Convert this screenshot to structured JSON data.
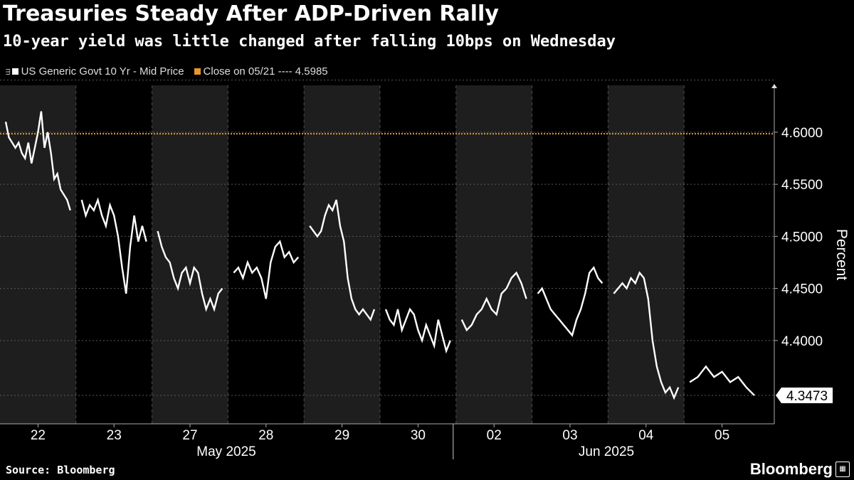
{
  "header": {
    "title": "Treasuries Steady After ADP-Driven Rally",
    "subtitle": "10-year yield was little changed after falling 10bps on Wednesday"
  },
  "legend": {
    "series_label": "US Generic Govt 10 Yr - Mid Price",
    "reference_label": "Close on 05/21 ---- 4.5985"
  },
  "footer": {
    "source": "Source: Bloomberg",
    "brand": "Bloomberg"
  },
  "colors": {
    "background": "#000000",
    "line": "#ffffff",
    "reference": "#e8962c",
    "shade": "#1e1e1e",
    "grid": "#555555"
  },
  "chart_data": {
    "type": "line",
    "ylabel": "Percent",
    "ylim": [
      4.32,
      4.645
    ],
    "yticks": [
      "4.4000",
      "4.4500",
      "4.5000",
      "4.5500",
      "4.6000"
    ],
    "ytick_values": [
      4.4,
      4.45,
      4.5,
      4.55,
      4.6
    ],
    "last_value_label": "4.3473",
    "last_value": 4.3473,
    "reference_value": 4.5985,
    "days": [
      "22",
      "23",
      "27",
      "28",
      "29",
      "30",
      "02",
      "03",
      "04",
      "05"
    ],
    "months": [
      "May 2025",
      "Jun 2025"
    ],
    "series": [
      {
        "segments": [
          [
            4.61,
            4.595,
            4.59,
            4.585,
            4.59,
            4.58,
            4.575,
            4.59,
            4.57,
            4.585,
            4.6,
            4.62,
            4.585,
            4.6,
            4.58,
            4.555,
            4.56,
            4.545,
            4.54,
            4.535,
            4.525
          ],
          [
            4.535,
            4.52,
            4.53,
            4.525,
            4.535,
            4.52,
            4.51,
            4.53,
            4.52,
            4.5,
            4.47,
            4.445,
            4.49,
            4.52,
            4.495,
            4.51,
            4.495
          ],
          [
            4.505,
            4.49,
            4.48,
            4.475,
            4.46,
            4.45,
            4.465,
            4.47,
            4.455,
            4.47,
            4.465,
            4.445,
            4.43,
            4.44,
            4.43,
            4.445,
            4.45
          ],
          [
            4.465,
            4.47,
            4.46,
            4.475,
            4.465,
            4.47,
            4.46,
            4.44,
            4.475,
            4.49,
            4.495,
            4.48,
            4.485,
            4.475,
            4.48
          ],
          [
            4.51,
            4.505,
            4.5,
            4.505,
            4.52,
            4.53,
            4.525,
            4.535,
            4.51,
            4.495,
            4.46,
            4.44,
            4.43,
            4.425,
            4.43,
            4.425,
            4.42,
            4.43
          ],
          [
            4.43,
            4.42,
            4.415,
            4.43,
            4.41,
            4.42,
            4.43,
            4.425,
            4.41,
            4.4,
            4.415,
            4.405,
            4.395,
            4.42,
            4.405,
            4.39,
            4.4
          ],
          [
            4.42,
            4.41,
            4.415,
            4.425,
            4.43,
            4.44,
            4.43,
            4.425,
            4.445,
            4.45,
            4.46,
            4.465,
            4.455,
            4.44
          ],
          [
            4.445,
            4.45,
            4.44,
            4.43,
            4.425,
            4.42,
            4.415,
            4.41,
            4.405,
            4.42,
            4.43,
            4.445,
            4.465,
            4.47,
            4.46,
            4.455
          ],
          [
            4.445,
            4.45,
            4.455,
            4.45,
            4.46,
            4.455,
            4.465,
            4.46,
            4.44,
            4.4,
            4.375,
            4.36,
            4.35,
            4.355,
            4.345,
            4.355
          ],
          [
            4.36,
            4.365,
            4.375,
            4.365,
            4.37,
            4.36,
            4.365,
            4.355,
            4.3473
          ]
        ]
      }
    ]
  }
}
